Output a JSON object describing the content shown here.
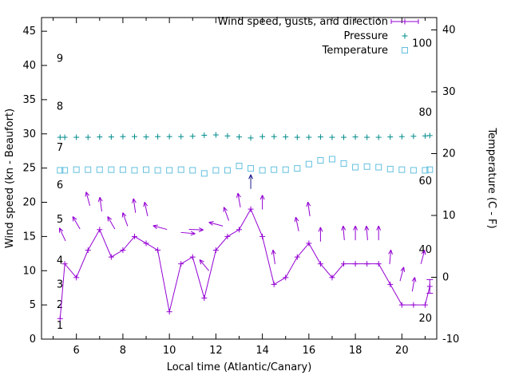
{
  "chart_data": {
    "type": "line",
    "xlabel": "Local time (Atlantic/Canary)",
    "ylabel_left": "Wind speed (kn - Beaufort)",
    "ylabel_right": "Temperature (C - F)",
    "xlim": [
      4.5,
      21.5
    ],
    "left_lim": [
      0,
      47
    ],
    "right_lim_c": [
      -10,
      42
    ],
    "x_ticks": [
      6,
      8,
      10,
      12,
      14,
      16,
      18,
      20
    ],
    "left_ticks": [
      0,
      5,
      10,
      15,
      20,
      25,
      30,
      35,
      40,
      45
    ],
    "right_ticks": [
      -10,
      0,
      10,
      20,
      30,
      40
    ],
    "grid": false,
    "legend_position": "top-right-inside",
    "legend": [
      {
        "label": "Wind speed, gusts, and direction",
        "series": "wind"
      },
      {
        "label": "Pressure",
        "series": "pressure"
      },
      {
        "label": "Temperature",
        "series": "temperature"
      }
    ],
    "colors": {
      "wind": "#9400d3",
      "pressure": "#008b8b",
      "temperature": "#63c0df",
      "dark_arrow": "#1a1a8c",
      "axis": "#000000"
    },
    "beaufort_labels": [
      {
        "label": "1",
        "kn": 2
      },
      {
        "label": "2",
        "kn": 5
      },
      {
        "label": "3",
        "kn": 8
      },
      {
        "label": "4",
        "kn": 11.5
      },
      {
        "label": "5",
        "kn": 17.5
      },
      {
        "label": "6",
        "kn": 22.5
      },
      {
        "label": "7",
        "kn": 28
      },
      {
        "label": "8",
        "kn": 34
      },
      {
        "label": "9",
        "kn": 41
      }
    ],
    "fahrenheit_labels": [
      20,
      40,
      60,
      80,
      100
    ],
    "x": [
      5.3,
      5.5,
      6.0,
      6.5,
      7.0,
      7.5,
      8.0,
      8.5,
      9.0,
      9.5,
      10.0,
      10.5,
      11.0,
      11.5,
      12.0,
      12.5,
      13.0,
      13.5,
      14.0,
      14.5,
      15.0,
      15.5,
      16.0,
      16.5,
      17.0,
      17.5,
      18.0,
      18.5,
      19.0,
      19.5,
      20.0,
      20.5,
      21.0,
      21.2
    ],
    "series": [
      {
        "name": "Wind speed (kn)",
        "key": "wind",
        "axis": "left",
        "style": "line+plus",
        "values": [
          3,
          11,
          9,
          13,
          16,
          12,
          13,
          15,
          14,
          13,
          4,
          11,
          12,
          6,
          13,
          15,
          16,
          19,
          15,
          8,
          9,
          12,
          14,
          11,
          9,
          11,
          11,
          11,
          11,
          8,
          5,
          5,
          5,
          7.7
        ]
      },
      {
        "name": "Pressure",
        "key": "pressure",
        "axis": "left",
        "style": "plus",
        "values": [
          29.5,
          29.5,
          29.5,
          29.5,
          29.55,
          29.55,
          29.6,
          29.6,
          29.55,
          29.6,
          29.6,
          29.6,
          29.65,
          29.8,
          29.85,
          29.7,
          29.55,
          29.4,
          29.6,
          29.6,
          29.55,
          29.5,
          29.5,
          29.55,
          29.5,
          29.5,
          29.55,
          29.5,
          29.5,
          29.55,
          29.6,
          29.65,
          29.7,
          29.75
        ]
      },
      {
        "name": "Temperature (C)",
        "key": "temperature",
        "axis": "right",
        "style": "square",
        "values": [
          17.3,
          17.3,
          17.4,
          17.4,
          17.4,
          17.4,
          17.4,
          17.3,
          17.4,
          17.3,
          17.3,
          17.4,
          17.3,
          16.8,
          17.3,
          17.3,
          18.0,
          17.6,
          17.3,
          17.4,
          17.4,
          17.6,
          18.3,
          18.9,
          19.1,
          18.4,
          17.8,
          17.9,
          17.8,
          17.5,
          17.4,
          17.3,
          17.3,
          17.4
        ]
      }
    ],
    "gust_arrows": [
      {
        "x": 5.4,
        "kn": 15.3,
        "dir": -25
      },
      {
        "x": 6.0,
        "kn": 17.0,
        "dir": -30
      },
      {
        "x": 6.5,
        "kn": 20.5,
        "dir": -15
      },
      {
        "x": 7.05,
        "kn": 19.7,
        "dir": -8
      },
      {
        "x": 7.5,
        "kn": 17.0,
        "dir": -30
      },
      {
        "x": 8.1,
        "kn": 17.5,
        "dir": -20
      },
      {
        "x": 8.5,
        "kn": 19.5,
        "dir": -8
      },
      {
        "x": 9.0,
        "kn": 19.0,
        "dir": -12
      },
      {
        "x": 9.6,
        "kn": 16.3,
        "dir": -75
      },
      {
        "x": 10.8,
        "kn": 15.5,
        "dir": 95
      },
      {
        "x": 11.15,
        "kn": 16.0,
        "dir": 92
      },
      {
        "x": 11.5,
        "kn": 10.8,
        "dir": -40
      },
      {
        "x": 12.0,
        "kn": 16.8,
        "dir": -75
      },
      {
        "x": 12.45,
        "kn": 18.3,
        "dir": -20
      },
      {
        "x": 13.0,
        "kn": 20.3,
        "dir": -10
      },
      {
        "x": 13.5,
        "kn": 23.0,
        "dir": 0,
        "dark": true
      },
      {
        "x": 14.0,
        "kn": 20.0,
        "dir": 0
      },
      {
        "x": 14.5,
        "kn": 12.0,
        "dir": -8
      },
      {
        "x": 15.5,
        "kn": 16.8,
        "dir": -12
      },
      {
        "x": 16.0,
        "kn": 19.0,
        "dir": -8
      },
      {
        "x": 16.5,
        "kn": 15.3,
        "dir": 0
      },
      {
        "x": 17.5,
        "kn": 15.5,
        "dir": -5
      },
      {
        "x": 18.0,
        "kn": 15.5,
        "dir": 0
      },
      {
        "x": 18.5,
        "kn": 15.5,
        "dir": -5
      },
      {
        "x": 19.0,
        "kn": 15.5,
        "dir": 0
      },
      {
        "x": 19.5,
        "kn": 12.0,
        "dir": 5
      },
      {
        "x": 20.0,
        "kn": 9.5,
        "dir": 15
      },
      {
        "x": 20.5,
        "kn": 8.0,
        "dir": 10
      },
      {
        "x": 20.9,
        "kn": 12.0,
        "dir": 15
      }
    ],
    "wind_errorbar": {
      "x": 21.2,
      "low": 6.7,
      "high": 8.7
    }
  }
}
